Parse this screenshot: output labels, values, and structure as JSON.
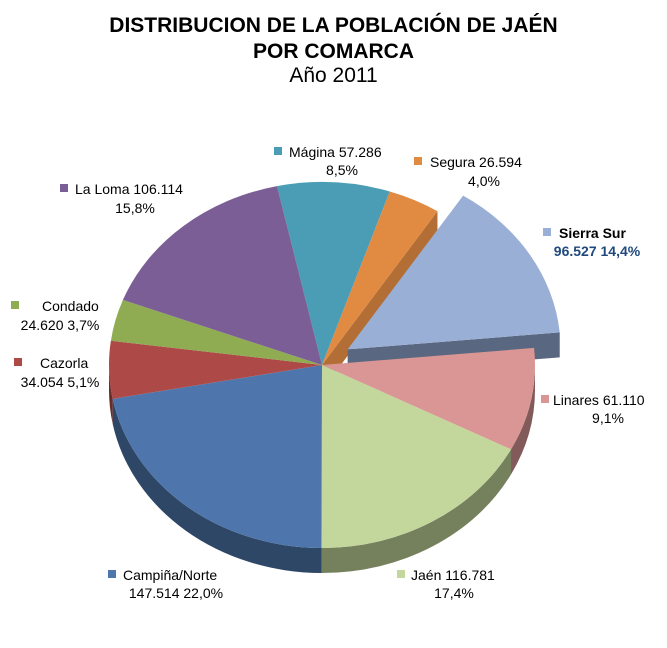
{
  "chart_data": {
    "type": "pie",
    "title_lines": [
      "DISTRIBUCION DE LA POBLACIÓN DE JAÉN",
      "POR COMARCA",
      "Año 2011"
    ],
    "style": "3d-exploded",
    "exploded": "Sierra Sur",
    "slices": [
      {
        "name": "Mágina",
        "value": 57286,
        "value_label": "57.286",
        "percent_label": "8,5%",
        "color": "#4A9DB4"
      },
      {
        "name": "Segura",
        "value": 26594,
        "value_label": "26.594",
        "percent_label": "4,0%",
        "color": "#E08A42"
      },
      {
        "name": "Sierra Sur",
        "value": 96527,
        "value_label": "96.527",
        "percent_label": "14,4%",
        "color": "#9AAFD6"
      },
      {
        "name": "Linares",
        "value": 61110,
        "value_label": "61.110",
        "percent_label": "9,1%",
        "color": "#D99694"
      },
      {
        "name": "Jaén",
        "value": 116781,
        "value_label": "116.781",
        "percent_label": "17,4%",
        "color": "#C3D69B"
      },
      {
        "name": "Campiña/Norte",
        "value": 147514,
        "value_label": "147.514",
        "percent_label": "22,0%",
        "color": "#4E76AC"
      },
      {
        "name": "Cazorla",
        "value": 34054,
        "value_label": "34.054",
        "percent_label": "5,1%",
        "color": "#AD4A48"
      },
      {
        "name": "Condado",
        "value": 24620,
        "value_label": "24.620",
        "percent_label": "3,7%",
        "color": "#8FAC52"
      },
      {
        "name": "La Loma",
        "value": 106114,
        "value_label": "106.114",
        "percent_label": "15,8%",
        "color": "#7A5E95"
      }
    ],
    "legend": "none (data labels with markers)",
    "label_highlight_color": "#1F497D"
  }
}
